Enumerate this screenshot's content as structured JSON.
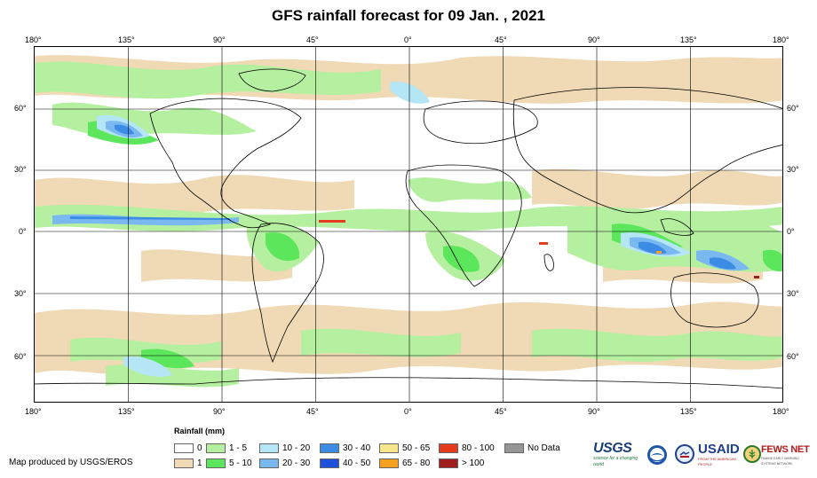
{
  "title": "GFS rainfall forecast for 09 Jan. , 2021",
  "axes": {
    "lon_labels": [
      "180°",
      "135°",
      "90°",
      "45°",
      "0°",
      "45°",
      "90°",
      "135°",
      "180°"
    ],
    "lat_labels": [
      "60°",
      "30°",
      "0°",
      "30°",
      "60°"
    ]
  },
  "legend": {
    "title": "Rainfall (mm)",
    "items": [
      {
        "label": "0",
        "color": "#ffffff"
      },
      {
        "label": "1",
        "color": "#f0d9b5"
      },
      {
        "label": "1 - 5",
        "color": "#b4f0a0"
      },
      {
        "label": "5 - 10",
        "color": "#5ce65c"
      },
      {
        "label": "10 - 20",
        "color": "#b4e6f5"
      },
      {
        "label": "20 - 30",
        "color": "#7ab8f0"
      },
      {
        "label": "30 - 40",
        "color": "#3c8ce6"
      },
      {
        "label": "40 - 50",
        "color": "#1e50dc"
      },
      {
        "label": "50 - 65",
        "color": "#f5e68c"
      },
      {
        "label": "65 - 80",
        "color": "#f5a01e"
      },
      {
        "label": "80 - 100",
        "color": "#e63c1e"
      },
      {
        "label": "> 100",
        "color": "#a01e1e"
      },
      {
        "label": "No Data",
        "color": "#969696"
      }
    ]
  },
  "credit": "Map produced by USGS/EROS",
  "logos": {
    "usgs": "USGS",
    "usgs_tagline": "science for a changing world",
    "usaid": "USAID",
    "usaid_tagline": "FROM THE AMERICAN PEOPLE",
    "fews": "FEWS NET",
    "fews_tagline": "FAMINE EARLY WARNING SYSTEMS NETWORK"
  },
  "map": {
    "ocean_color": "#ffffff",
    "grid_color": "#000000",
    "coast_color": "#000000"
  }
}
